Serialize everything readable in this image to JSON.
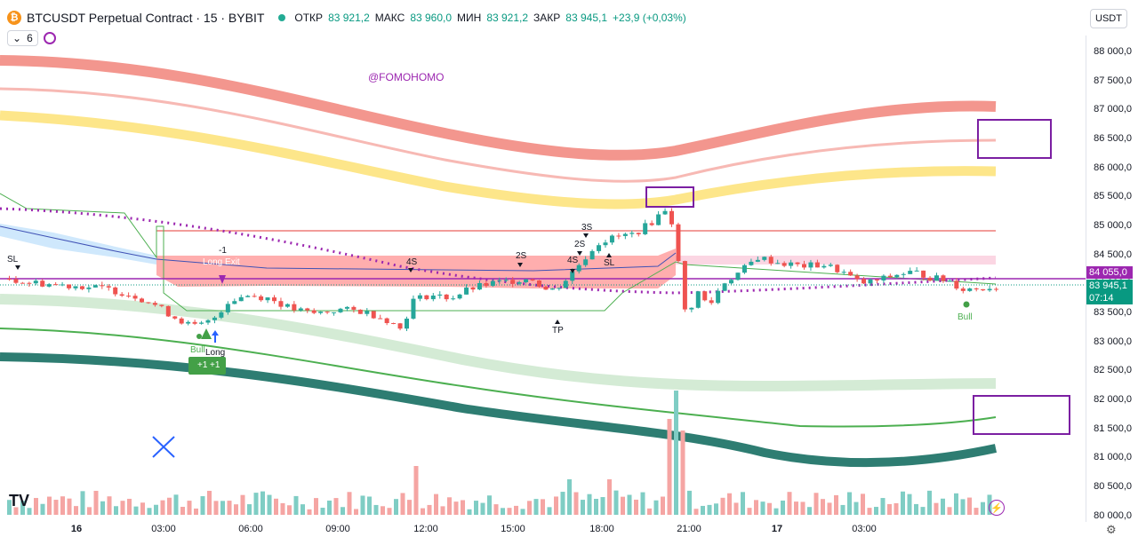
{
  "header": {
    "logo_glyph": "₿",
    "symbol": "BTCUSDT Perpetual Contract · 15 · BYBIT",
    "status_color": "#22ab94",
    "ohlc": [
      {
        "label": "ОТКР",
        "value": "83 921,2"
      },
      {
        "label": "МАКС",
        "value": "83 960,0"
      },
      {
        "label": "МИН",
        "value": "83 921,2"
      },
      {
        "label": "ЗАКР",
        "value": "83 945,1"
      }
    ],
    "change": "+23,9 (+0,03%)",
    "indicator_count": "6",
    "currency": "USDT"
  },
  "watermark": "@FOMOHOMO",
  "price_axis": {
    "ticks": [
      "88 000,0",
      "87 500,0",
      "87 000,0",
      "86 500,0",
      "86 000,0",
      "85 500,0",
      "85 000,0",
      "84 500,0",
      "84 000,0",
      "83 500,0",
      "83 000,0",
      "82 500,0",
      "82 000,0",
      "81 500,0",
      "81 000,0",
      "80 500,0",
      "80 000,0"
    ],
    "label_high": "84 055,0",
    "label_last": "83 945,1",
    "label_timer": "07:14",
    "colors": {
      "high": "#9c27b0",
      "last": "#089981"
    }
  },
  "time_axis": {
    "ticks": [
      {
        "label": "16",
        "bold": true
      },
      {
        "label": "03:00",
        "bold": false
      },
      {
        "label": "06:00",
        "bold": false
      },
      {
        "label": "09:00",
        "bold": false
      },
      {
        "label": "12:00",
        "bold": false
      },
      {
        "label": "15:00",
        "bold": false
      },
      {
        "label": "18:00",
        "bold": false
      },
      {
        "label": "21:00",
        "bold": false
      },
      {
        "label": "17",
        "bold": true
      },
      {
        "label": "03:00",
        "bold": false
      }
    ]
  },
  "chart_data": {
    "type": "candlestick",
    "annotations": [
      "SL",
      "-1",
      "Long Exit",
      "Bull",
      "Long",
      "+1",
      "+1",
      "4S",
      "2S",
      "4S",
      "3S",
      "2S",
      "SL",
      "TP",
      "Bull"
    ],
    "price_range": [
      80000,
      88000
    ],
    "colors": {
      "up": "#26a69a",
      "down": "#ef5350",
      "band_red": "#f28b82",
      "band_yellow": "#fde68a",
      "band_green_dark": "#2e7d72",
      "band_green_light": "#d4ebd5",
      "highlight_box": "#7b1fa2"
    }
  },
  "footer": {
    "brand": "TV",
    "settings_icon": "⚙",
    "flash_icon": "⚡"
  }
}
